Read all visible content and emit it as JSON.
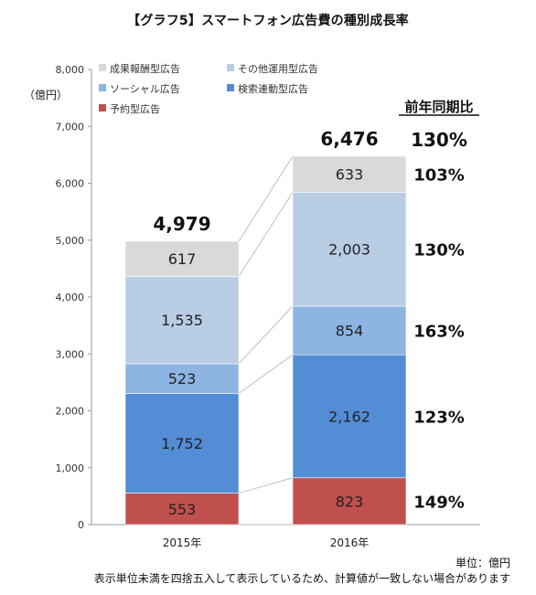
{
  "title": "【グラフ5】スマートフォン広告費の種別成長率",
  "ylabel": "（億円）",
  "yoy_header": "前年同期比",
  "unit_note": "単位：億円",
  "rounding_note": "表示単位未満を四捨五入して表示しているため、計算値が一致しない場合があります",
  "chart_data": {
    "type": "bar",
    "stacked": true,
    "categories": [
      "2015年",
      "2016年"
    ],
    "ylim": [
      0,
      8000
    ],
    "yticks": [
      0,
      1000,
      2000,
      3000,
      4000,
      5000,
      6000,
      7000,
      8000
    ],
    "ytick_labels": [
      "0",
      "1,000",
      "2,000",
      "3,000",
      "4,000",
      "5,000",
      "6,000",
      "7,000",
      "8,000"
    ],
    "legend_position": "top-left",
    "series": [
      {
        "name": "予約型広告",
        "color": "#c0504d",
        "values": [
          553,
          823
        ],
        "labels": [
          "553",
          "823"
        ],
        "yoy": "149%"
      },
      {
        "name": "検索連動型広告",
        "color": "#538dd5",
        "values": [
          1752,
          2162
        ],
        "labels": [
          "1,752",
          "2,162"
        ],
        "yoy": "123%"
      },
      {
        "name": "ソーシャル広告",
        "color": "#8db4e2",
        "values": [
          523,
          854
        ],
        "labels": [
          "523",
          "854"
        ],
        "yoy": "163%"
      },
      {
        "name": "その他運用型広告",
        "color": "#b8cce4",
        "values": [
          1535,
          2003
        ],
        "labels": [
          "1,535",
          "2,003"
        ],
        "yoy": "130%"
      },
      {
        "name": "成果報酬型広告",
        "color": "#d9d9d9",
        "values": [
          617,
          633
        ],
        "labels": [
          "617",
          "633"
        ],
        "yoy": "103%"
      }
    ],
    "totals": [
      4979,
      6476
    ],
    "total_labels": [
      "4,979",
      "6,476"
    ],
    "total_yoy": "130%",
    "legend_order": [
      "成果報酬型広告",
      "その他運用型広告",
      "ソーシャル広告",
      "検索連動型広告",
      "予約型広告"
    ]
  }
}
